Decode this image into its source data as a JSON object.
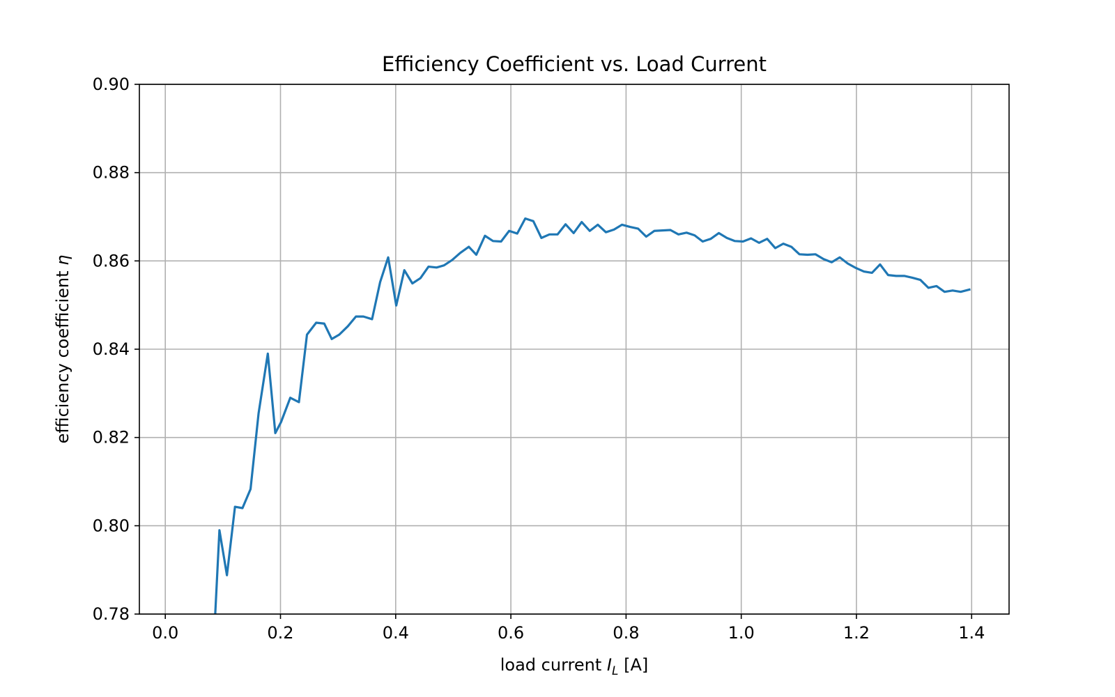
{
  "chart_data": {
    "type": "line",
    "title": "Efficiency Coefficient vs. Load Current",
    "xlabel": {
      "prefix": "load current ",
      "symbol": "I",
      "subscript": "L",
      "suffix": " [A]"
    },
    "ylabel": {
      "prefix": "efficiency coefficient ",
      "symbol": "η"
    },
    "xlim": [
      -0.045,
      1.465
    ],
    "ylim": [
      0.78,
      0.9
    ],
    "x_ticks": [
      0.0,
      0.2,
      0.4,
      0.6,
      0.8,
      1.0,
      1.2,
      1.4
    ],
    "x_tick_labels": [
      "0.0",
      "0.2",
      "0.4",
      "0.6",
      "0.8",
      "1.0",
      "1.2",
      "1.4"
    ],
    "y_ticks": [
      0.78,
      0.8,
      0.82,
      0.84,
      0.86,
      0.88,
      0.9
    ],
    "y_tick_labels": [
      "0.78",
      "0.80",
      "0.82",
      "0.84",
      "0.86",
      "0.88",
      "0.90"
    ],
    "grid": true,
    "series_color": "#1f77b4",
    "series": [
      {
        "x": [
          0.0867,
          0.094,
          0.107,
          0.121,
          0.134,
          0.148,
          0.162,
          0.178,
          0.191,
          0.201,
          0.217,
          0.232,
          0.246,
          0.262,
          0.276,
          0.289,
          0.302,
          0.317,
          0.331,
          0.344,
          0.359,
          0.373,
          0.387,
          0.401,
          0.415,
          0.429,
          0.443,
          0.457,
          0.471,
          0.484,
          0.498,
          0.512,
          0.527,
          0.54,
          0.555,
          0.569,
          0.583,
          0.597,
          0.611,
          0.625,
          0.639,
          0.653,
          0.667,
          0.681,
          0.695,
          0.709,
          0.723,
          0.737,
          0.751,
          0.765,
          0.779,
          0.793,
          0.807,
          0.821,
          0.835,
          0.849,
          0.863,
          0.877,
          0.891,
          0.905,
          0.919,
          0.933,
          0.947,
          0.961,
          0.975,
          0.989,
          1.003,
          1.017,
          1.031,
          1.045,
          1.059,
          1.073,
          1.087,
          1.101,
          1.115,
          1.129,
          1.143,
          1.157,
          1.171,
          1.185,
          1.199,
          1.213,
          1.227,
          1.241,
          1.255,
          1.269,
          1.283,
          1.297,
          1.311,
          1.325,
          1.339,
          1.353,
          1.367,
          1.381,
          1.396
        ],
        "y": [
          0.78,
          0.799,
          0.7888,
          0.8043,
          0.804,
          0.8083,
          0.8255,
          0.839,
          0.821,
          0.8235,
          0.829,
          0.828,
          0.8433,
          0.846,
          0.8458,
          0.8423,
          0.8433,
          0.8452,
          0.8474,
          0.8474,
          0.8468,
          0.8552,
          0.8608,
          0.8499,
          0.8579,
          0.8549,
          0.8561,
          0.8587,
          0.8585,
          0.859,
          0.8602,
          0.8618,
          0.8632,
          0.8614,
          0.8657,
          0.8645,
          0.8644,
          0.8668,
          0.8662,
          0.8696,
          0.869,
          0.8652,
          0.866,
          0.866,
          0.8683,
          0.8663,
          0.8688,
          0.8668,
          0.8682,
          0.8665,
          0.8671,
          0.8682,
          0.8677,
          0.8673,
          0.8655,
          0.8668,
          0.8669,
          0.867,
          0.866,
          0.8664,
          0.8658,
          0.8644,
          0.865,
          0.8663,
          0.8652,
          0.8645,
          0.8644,
          0.8651,
          0.8641,
          0.865,
          0.8629,
          0.8639,
          0.8632,
          0.8615,
          0.8614,
          0.8615,
          0.8604,
          0.8597,
          0.8608,
          0.8594,
          0.8584,
          0.8576,
          0.8573,
          0.8592,
          0.8568,
          0.8566,
          0.8566,
          0.8562,
          0.8557,
          0.8539,
          0.8543,
          0.853,
          0.8533,
          0.853,
          0.8535
        ]
      }
    ]
  }
}
